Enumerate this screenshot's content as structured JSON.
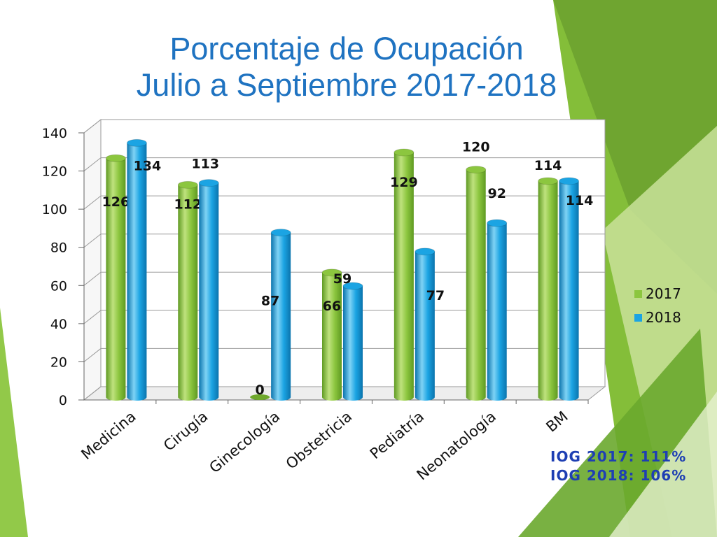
{
  "slide": {
    "title_line1": "Porcentaje de Ocupación",
    "title_line2": "Julio a Septiembre 2017-2018",
    "iog_2017": "IOG 2017: 111%",
    "iog_2018": "IOG 2018: 106%"
  },
  "colors": {
    "title": "#1f73c1",
    "series_2017": "#8cc63f",
    "series_2018": "#1ba4e3",
    "iog_text": "#1e3fb3",
    "decor_green": "#7dba2e"
  },
  "chart_data": {
    "type": "bar",
    "categories": [
      "Medicina",
      "Cirugía",
      "Ginecología",
      "Obstetricia",
      "Pediatría",
      "Neonatología",
      "BM"
    ],
    "series": [
      {
        "name": "2017",
        "values": [
          126,
          112,
          0,
          66,
          129,
          120,
          114
        ]
      },
      {
        "name": "2018",
        "values": [
          134,
          113,
          87,
          59,
          77,
          92,
          114
        ]
      }
    ],
    "ylim": [
      0,
      140
    ],
    "yticks": [
      0,
      20,
      40,
      60,
      80,
      100,
      120,
      140
    ],
    "grid": true,
    "legend_position": "right",
    "style": "3d-cylinder"
  }
}
